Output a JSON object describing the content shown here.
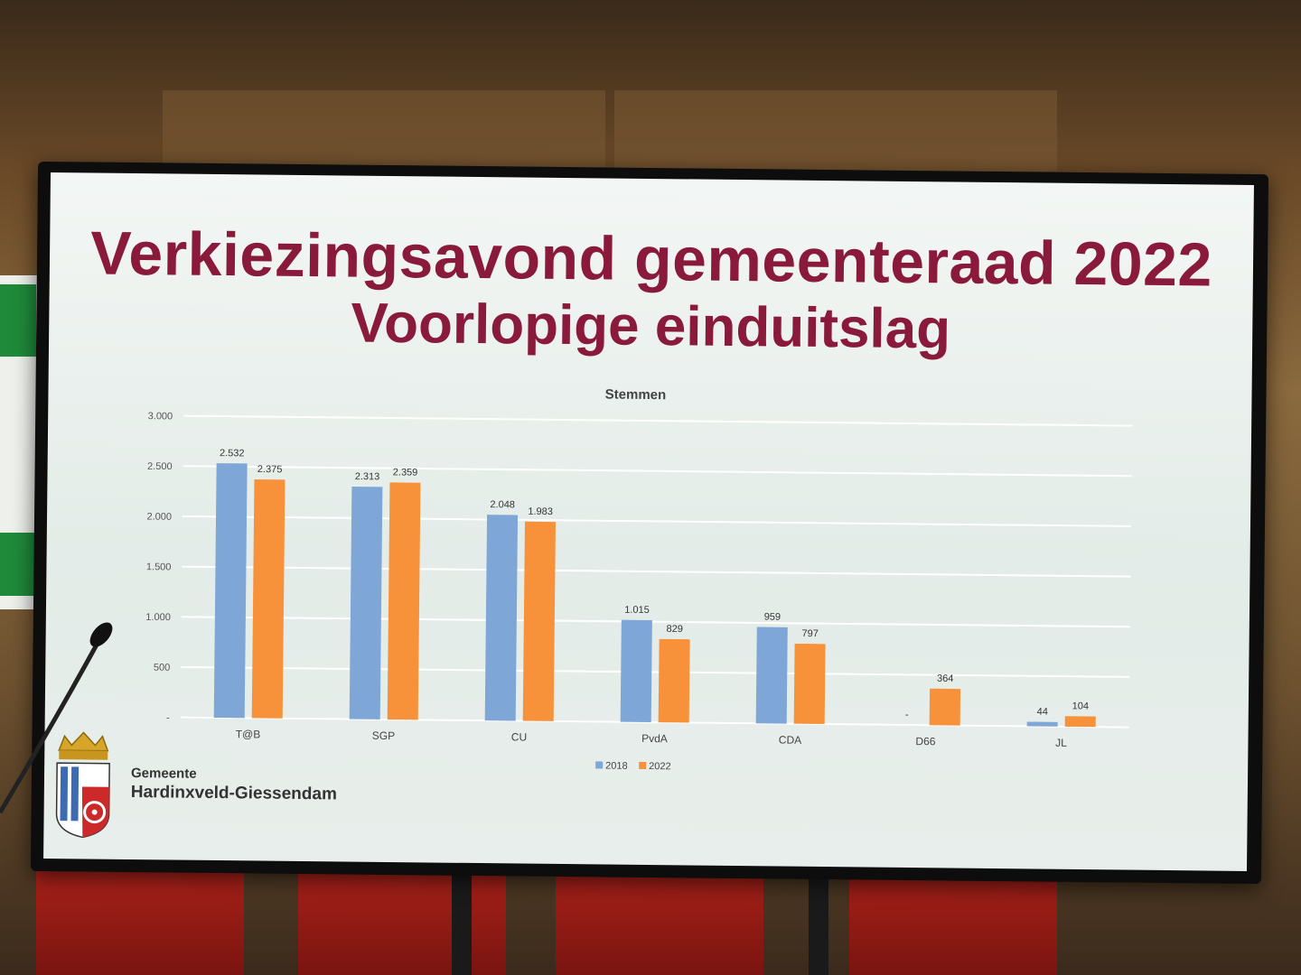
{
  "slide": {
    "title": "Verkiezingsavond gemeenteraad 2022",
    "subtitle": "Voorlopige einduitslag"
  },
  "organization": {
    "line1": "Gemeente",
    "line2": "Hardinxveld-Giessendam"
  },
  "colors": {
    "title": "#8a1a3c",
    "series_2018": "#7ea6d6",
    "series_2022": "#f7923a"
  },
  "chart_data": {
    "type": "bar",
    "title": "Stemmen",
    "xlabel": "",
    "ylabel": "",
    "categories": [
      "T@B",
      "SGP",
      "CU",
      "PvdA",
      "CDA",
      "D66",
      "JL"
    ],
    "series": [
      {
        "name": "2018",
        "values": [
          2532,
          2313,
          2048,
          1015,
          959,
          0,
          44
        ],
        "labels": [
          "2.532",
          "2.313",
          "2.048",
          "1.015",
          "959",
          "-",
          "44"
        ]
      },
      {
        "name": "2022",
        "values": [
          2375,
          2359,
          1983,
          829,
          797,
          364,
          104
        ],
        "labels": [
          "2.375",
          "2.359",
          "1.983",
          "829",
          "797",
          "364",
          "104"
        ]
      }
    ],
    "ylim": [
      0,
      3000
    ],
    "yticks": [
      0,
      500,
      1000,
      1500,
      2000,
      2500,
      3000
    ],
    "ytick_labels": [
      "-",
      "500",
      "1.000",
      "1.500",
      "2.000",
      "2.500",
      "3.000"
    ],
    "grid": true,
    "legend_position": "bottom"
  }
}
